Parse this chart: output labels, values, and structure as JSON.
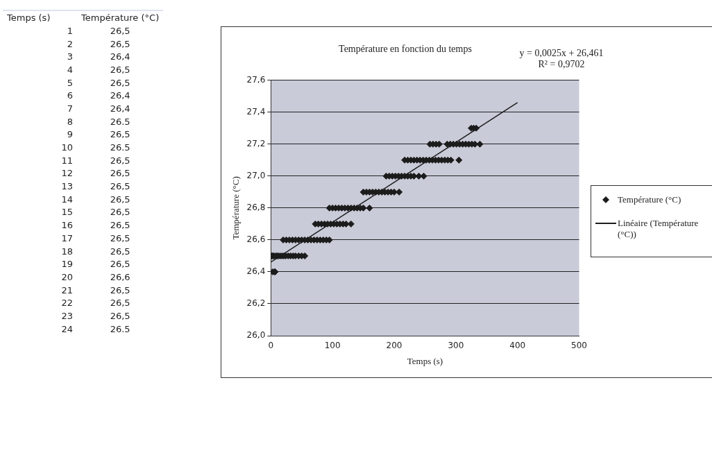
{
  "chart_data": [
    {
      "type": "heatmap",
      "ylabel": "Temps (s)",
      "categories": [
        "Température (°C)"
      ],
      "y_categories": [
        "1",
        "2",
        "3",
        "4",
        "5",
        "6",
        "7",
        "8",
        "9",
        "10",
        "11",
        "12",
        "13",
        "14",
        "15",
        "16",
        "17",
        "18",
        "19",
        "20",
        "21",
        "22",
        "23",
        "24"
      ],
      "cells": [
        [
          26.5
        ],
        [
          26.5
        ],
        [
          26.4
        ],
        [
          26.5
        ],
        [
          26.5
        ],
        [
          26.4
        ],
        [
          26.4
        ],
        [
          26.5
        ],
        [
          26.5
        ],
        [
          26.5
        ],
        [
          26.5
        ],
        [
          26.5
        ],
        [
          26.5
        ],
        [
          26.5
        ],
        [
          26.5
        ],
        [
          26.5
        ],
        [
          26.5
        ],
        [
          26.5
        ],
        [
          26.5
        ],
        [
          26.6
        ],
        [
          26.5
        ],
        [
          26.5
        ],
        [
          26.5
        ],
        [
          26.5
        ]
      ],
      "cell_labels": [
        [
          "26,5"
        ],
        [
          "26,5"
        ],
        [
          "26,4"
        ],
        [
          "26,5"
        ],
        [
          "26,5"
        ],
        [
          "26,4"
        ],
        [
          "26,4"
        ],
        [
          "26.5"
        ],
        [
          "26,5"
        ],
        [
          "26.5"
        ],
        [
          "26,5"
        ],
        [
          "26,5"
        ],
        [
          "26,5"
        ],
        [
          "26,5"
        ],
        [
          "26,5"
        ],
        [
          "26,5"
        ],
        [
          "26,5"
        ],
        [
          "26,5"
        ],
        [
          "26,5"
        ],
        [
          "26,6"
        ],
        [
          "26,5"
        ],
        [
          "26,5"
        ],
        [
          "26,5"
        ],
        [
          "26.5"
        ]
      ]
    },
    {
      "type": "scatter",
      "title": "Température en fonction du temps",
      "xlabel": "Temps (s)",
      "ylabel": "Température (°C)",
      "xlim": [
        0,
        500
      ],
      "xticks": [
        0,
        100,
        200,
        300,
        400,
        500
      ],
      "ylim": [
        26,
        27.6
      ],
      "yticks": [
        {
          "value": 26,
          "label": "26,0"
        },
        {
          "value": 26.2,
          "label": "26,2"
        },
        {
          "value": 26.4,
          "label": "26,4"
        },
        {
          "value": 26.6,
          "label": "26,6"
        },
        {
          "value": 26.8,
          "label": "26,8"
        },
        {
          "value": 27,
          "label": "27,0"
        },
        {
          "value": 27.2,
          "label": "27,2"
        },
        {
          "value": 27.4,
          "label": "27,4"
        },
        {
          "value": 27.6,
          "label": "27,6"
        }
      ],
      "grid": "y",
      "legend": "right",
      "marker": "diamond",
      "annotations": [
        "y = 0,0025x + 26,461",
        "R² = 0,9702"
      ],
      "series": [
        {
          "name": "Température (°C)",
          "color": "#1c1c1c",
          "x": [
            3,
            6,
            7,
            1,
            2,
            4,
            5,
            8,
            10,
            12,
            15,
            18,
            21,
            24,
            28,
            32,
            36,
            40,
            45,
            50,
            55,
            20,
            25,
            30,
            35,
            40,
            45,
            50,
            55,
            60,
            65,
            70,
            75,
            80,
            85,
            90,
            95,
            72,
            77,
            82,
            87,
            92,
            97,
            102,
            107,
            112,
            117,
            122,
            130,
            95,
            100,
            105,
            110,
            115,
            120,
            125,
            130,
            135,
            140,
            145,
            150,
            160,
            150,
            155,
            160,
            165,
            170,
            175,
            180,
            185,
            190,
            195,
            200,
            208,
            187,
            192,
            197,
            202,
            207,
            212,
            217,
            222,
            227,
            232,
            240,
            248,
            217,
            222,
            227,
            232,
            237,
            242,
            247,
            252,
            257,
            262,
            267,
            272,
            277,
            282,
            287,
            292,
            305,
            258,
            263,
            268,
            273,
            286,
            291,
            296,
            301,
            306,
            311,
            316,
            321,
            326,
            331,
            339,
            325,
            329,
            333
          ],
          "values": [
            26.4,
            26.4,
            26.4,
            26.5,
            26.5,
            26.5,
            26.5,
            26.5,
            26.5,
            26.5,
            26.5,
            26.5,
            26.5,
            26.5,
            26.5,
            26.5,
            26.5,
            26.5,
            26.5,
            26.5,
            26.5,
            26.6,
            26.6,
            26.6,
            26.6,
            26.6,
            26.6,
            26.6,
            26.6,
            26.6,
            26.6,
            26.6,
            26.6,
            26.6,
            26.6,
            26.6,
            26.6,
            26.7,
            26.7,
            26.7,
            26.7,
            26.7,
            26.7,
            26.7,
            26.7,
            26.7,
            26.7,
            26.7,
            26.7,
            26.8,
            26.8,
            26.8,
            26.8,
            26.8,
            26.8,
            26.8,
            26.8,
            26.8,
            26.8,
            26.8,
            26.8,
            26.8,
            26.9,
            26.9,
            26.9,
            26.9,
            26.9,
            26.9,
            26.9,
            26.9,
            26.9,
            26.9,
            26.9,
            26.9,
            27.0,
            27.0,
            27.0,
            27.0,
            27.0,
            27.0,
            27.0,
            27.0,
            27.0,
            27.0,
            27.0,
            27.0,
            27.1,
            27.1,
            27.1,
            27.1,
            27.1,
            27.1,
            27.1,
            27.1,
            27.1,
            27.1,
            27.1,
            27.1,
            27.1,
            27.1,
            27.1,
            27.1,
            27.1,
            27.2,
            27.2,
            27.2,
            27.2,
            27.2,
            27.2,
            27.2,
            27.2,
            27.2,
            27.2,
            27.2,
            27.2,
            27.2,
            27.2,
            27.2,
            27.3,
            27.3,
            27.3
          ]
        },
        {
          "name": "Linéaire (Température (°C))",
          "type": "line",
          "color": "#1c1c1c",
          "marker": "none",
          "x": [
            0,
            400
          ],
          "values": [
            26.461,
            27.461
          ]
        }
      ]
    }
  ]
}
